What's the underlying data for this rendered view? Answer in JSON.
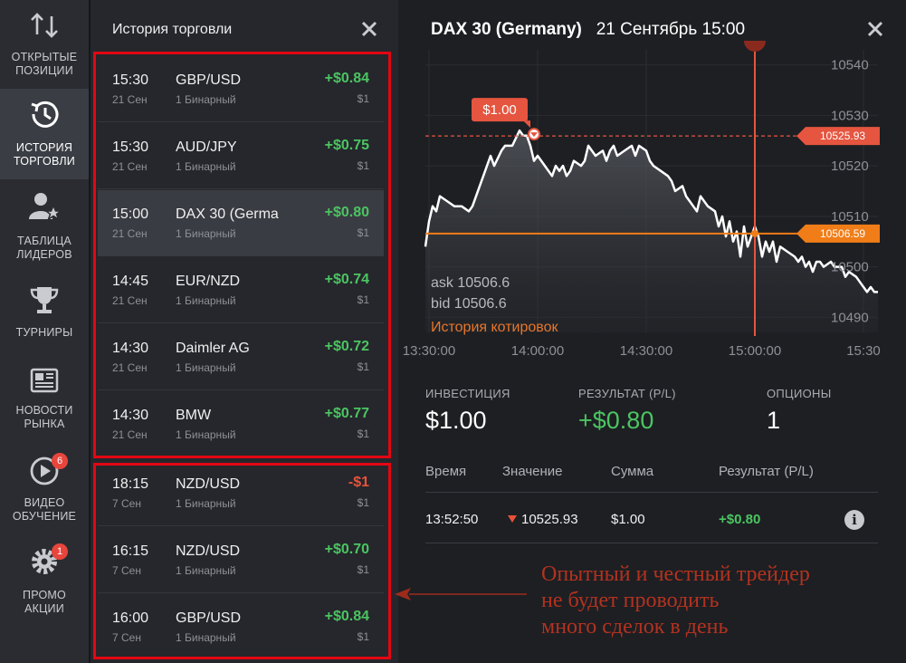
{
  "nav": {
    "items": [
      {
        "label1": "ОТКРЫТЫЕ",
        "label2": "ПОЗИЦИИ",
        "icon": "arrows-updown-icon"
      },
      {
        "label1": "ИСТОРИЯ",
        "label2": "ТОРГОВЛИ",
        "icon": "history-clock-icon"
      },
      {
        "label1": "ТАБЛИЦА",
        "label2": "ЛИДЕРОВ",
        "icon": "user-star-icon"
      },
      {
        "label1": "ТУРНИРЫ",
        "label2": "",
        "icon": "trophy-icon"
      },
      {
        "label1": "НОВОСТИ",
        "label2": "РЫНКА",
        "icon": "newspaper-icon"
      },
      {
        "label1": "ВИДЕО",
        "label2": "ОБУЧЕНИЕ",
        "icon": "play-circle-icon",
        "badge": "6"
      },
      {
        "label1": "ПРОМО",
        "label2": "АКЦИИ",
        "icon": "gear-promo-icon",
        "badge": "1"
      }
    ]
  },
  "history": {
    "title": "История торговли",
    "trades": [
      {
        "time": "15:30",
        "date": "21 Сен",
        "asset": "GBP/USD",
        "kind": "1 Бинарный",
        "pl": "+$0.84",
        "amount": "$1"
      },
      {
        "time": "15:30",
        "date": "21 Сен",
        "asset": "AUD/JPY",
        "kind": "1 Бинарный",
        "pl": "+$0.75",
        "amount": "$1"
      },
      {
        "time": "15:00",
        "date": "21 Сен",
        "asset": "DAX 30 (Germa",
        "kind": "1 Бинарный",
        "pl": "+$0.80",
        "amount": "$1"
      },
      {
        "time": "14:45",
        "date": "21 Сен",
        "asset": "EUR/NZD",
        "kind": "1 Бинарный",
        "pl": "+$0.74",
        "amount": "$1"
      },
      {
        "time": "14:30",
        "date": "21 Сен",
        "asset": "Daimler AG",
        "kind": "1 Бинарный",
        "pl": "+$0.72",
        "amount": "$1"
      },
      {
        "time": "14:30",
        "date": "21 Сен",
        "asset": "BMW",
        "kind": "1 Бинарный",
        "pl": "+$0.77",
        "amount": "$1"
      },
      {
        "time": "18:15",
        "date": "7 Сен",
        "asset": "NZD/USD",
        "kind": "1 Бинарный",
        "pl": "-$1",
        "amount": "$1"
      },
      {
        "time": "16:15",
        "date": "7 Сен",
        "asset": "NZD/USD",
        "kind": "1 Бинарный",
        "pl": "+$0.70",
        "amount": "$1"
      },
      {
        "time": "16:00",
        "date": "7 Сен",
        "asset": "GBP/USD",
        "kind": "1 Бинарный",
        "pl": "+$0.84",
        "amount": "$1"
      }
    ]
  },
  "detail": {
    "asset": "DAX 30 (Germany)",
    "datetime": "21 Сентябрь 15:00",
    "ask": "ask 10506.6",
    "bid": "bid 10506.6",
    "quotes_link": "История котировок",
    "stats": {
      "investment_label": "ИНВЕСТИЦИЯ",
      "investment_value": "$1.00",
      "result_label": "РЕЗУЛЬТАТ (P/L)",
      "result_value": "+$0.80",
      "options_label": "ОПЦИОНЫ",
      "options_value": "1"
    },
    "table": {
      "headers": [
        "Время",
        "Значение",
        "Сумма",
        "Результат (P/L)"
      ],
      "row": {
        "time": "13:52:50",
        "value": "10525.93",
        "sum": "$1.00",
        "result": "+$0.80"
      }
    }
  },
  "chart_data": {
    "type": "line",
    "ylim": [
      10487,
      10543
    ],
    "yticks": [
      "10540",
      "10530",
      "10520",
      "10510",
      "10500",
      "10490"
    ],
    "yticks_values": [
      10540,
      10530,
      10520,
      10510,
      10500,
      10490
    ],
    "xticks": [
      "13:30:00",
      "14:00:00",
      "14:30:00",
      "15:00:00",
      "15:30"
    ],
    "xticks_minutes": [
      810,
      840,
      870,
      900,
      930
    ],
    "xlim_minutes": [
      809,
      934
    ],
    "entry_label": "$1.00",
    "entry_time_minutes": 837,
    "entry_value": 10525.93,
    "entry_tag": "10525.93",
    "current_tag": "10506.59",
    "current_value": 10506.59,
    "expiry_minutes": 900,
    "series": [
      {
        "x": [
          809,
          810,
          811,
          812,
          813,
          815,
          817,
          819,
          821,
          822,
          823,
          825,
          827,
          828,
          830,
          831,
          833,
          835,
          836,
          837,
          838,
          839,
          840,
          842,
          844,
          845,
          846,
          847,
          848,
          849,
          850,
          852,
          853,
          854,
          856,
          858,
          859,
          860,
          861,
          862,
          864,
          866,
          867,
          868,
          870,
          871,
          872,
          874,
          876,
          877,
          878,
          880,
          881,
          882,
          884,
          885,
          887,
          889,
          890,
          891,
          892,
          893,
          894,
          895,
          896,
          897,
          898,
          899,
          900,
          901,
          902,
          903,
          904,
          905,
          906,
          907,
          909,
          911,
          912,
          913,
          914,
          915,
          916,
          917,
          918,
          919,
          921,
          922,
          924,
          925,
          926,
          928,
          929,
          931,
          932,
          933,
          934
        ],
        "y": [
          10504,
          10509,
          10512,
          10511,
          10514,
          10513,
          10512,
          10512,
          10511,
          10512,
          10514,
          10518,
          10522,
          10520,
          10523,
          10524,
          10524,
          10527,
          10526,
          10526,
          10524,
          10521,
          10522,
          10520,
          10518,
          10520,
          10519,
          10520,
          10518,
          10519,
          10521,
          10520,
          10521,
          10524,
          10522,
          10523,
          10521,
          10523,
          10524,
          10522,
          10523,
          10524,
          10522,
          10524,
          10523,
          10521,
          10520,
          10519,
          10518,
          10517,
          10515,
          10516,
          10514,
          10513,
          10511,
          10514,
          10512,
          10511,
          10508,
          10510,
          10506,
          10509,
          10505,
          10507,
          10502,
          10508,
          10504,
          10506,
          10508,
          10506,
          10502,
          10505,
          10503,
          10505,
          10501,
          10504,
          10503,
          10502,
          10501,
          10502,
          10500,
          10501,
          10499,
          10501,
          10501,
          10500,
          10501,
          10500,
          10500,
          10498,
          10499,
          10498,
          10497,
          10495,
          10496,
          10495,
          10495
        ]
      }
    ]
  },
  "annotation": {
    "line1": "Опытный и честный трейдер",
    "line2": "не будет проводить",
    "line3": "много  сделок в день"
  }
}
